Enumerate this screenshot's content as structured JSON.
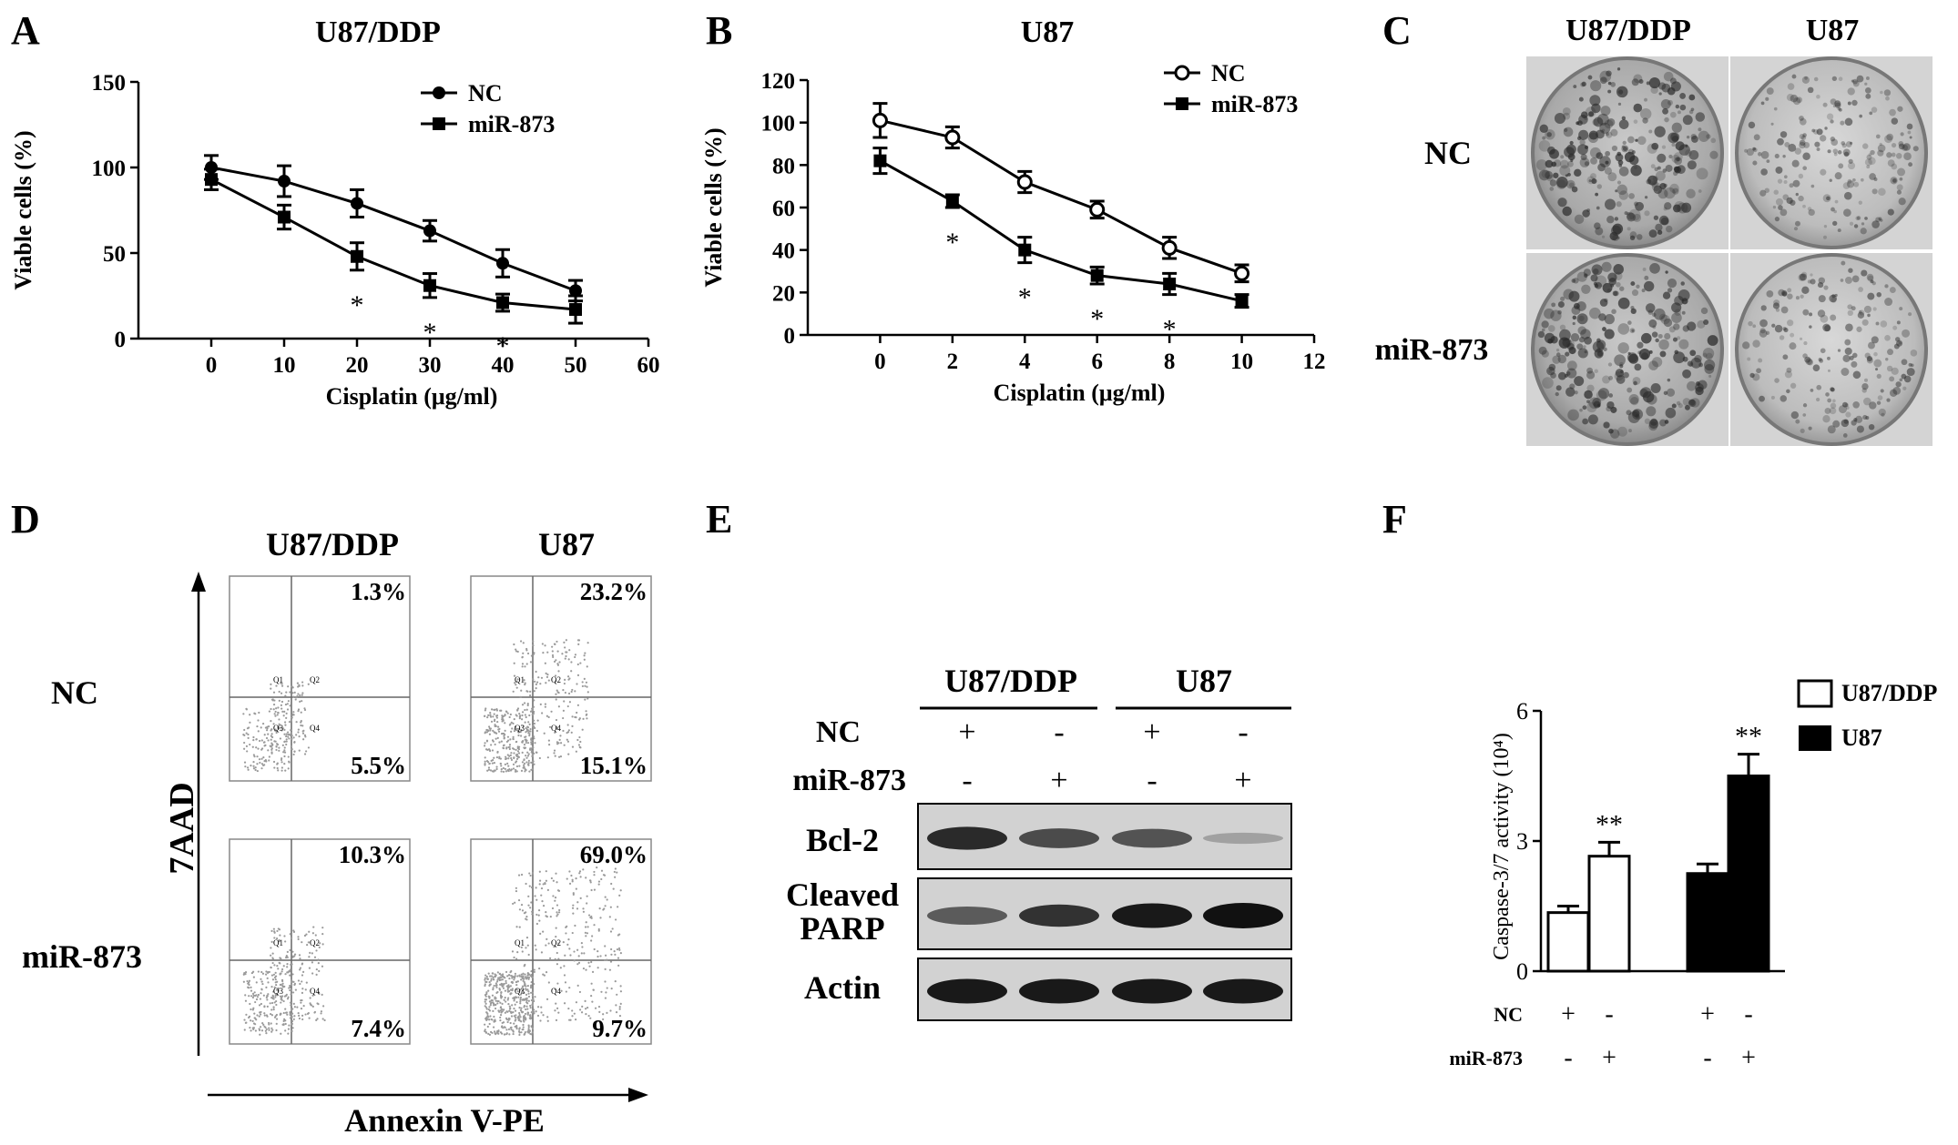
{
  "panels": {
    "A": {
      "letter": "A",
      "title": "U87/DDP"
    },
    "B": {
      "letter": "B",
      "title": "U87"
    },
    "C": {
      "letter": "C",
      "col_labels": [
        "U87/DDP",
        "U87"
      ],
      "row_labels": [
        "NC",
        "miR-873"
      ]
    },
    "D": {
      "letter": "D",
      "col_labels": [
        "U87/DDP",
        "U87"
      ],
      "row_labels": [
        "NC",
        "miR-873"
      ],
      "ylabel": "7AAD",
      "xlabel": "Annexin V-PE",
      "plots": [
        {
          "upper_right": "1.3%",
          "lower_right": "5.5%"
        },
        {
          "upper_right": "23.2%",
          "lower_right": "15.1%"
        },
        {
          "upper_right": "10.3%",
          "lower_right": "7.4%"
        },
        {
          "upper_right": "69.0%",
          "lower_right": "9.7%"
        }
      ],
      "quadrant_labels": [
        "Q1",
        "Q2",
        "Q3",
        "Q4"
      ]
    },
    "E": {
      "letter": "E",
      "groups": [
        "U87/DDP",
        "U87"
      ],
      "treatments": [
        {
          "name": "NC",
          "signs": [
            "+",
            "-",
            "+",
            "-"
          ]
        },
        {
          "name": "miR-873",
          "signs": [
            "-",
            "+",
            "-",
            "+"
          ]
        }
      ],
      "blots": [
        {
          "label": "Bcl-2",
          "intensity": [
            0.85,
            0.65,
            0.6,
            0.12
          ]
        },
        {
          "label": "Cleaved PARP",
          "intensity": [
            0.55,
            0.8,
            0.95,
            1.0
          ]
        },
        {
          "label": "Actin",
          "intensity": [
            0.95,
            0.95,
            0.95,
            0.95
          ]
        }
      ]
    },
    "F": {
      "letter": "F"
    }
  },
  "chart_data": [
    {
      "type": "line",
      "panel": "A",
      "title": "U87/DDP",
      "xlabel": "Cisplatin (μg/ml)",
      "ylabel": "Viable cells (%)",
      "xlim": [
        -10,
        60
      ],
      "ylim": [
        0,
        150
      ],
      "xticks": [
        0,
        10,
        20,
        30,
        40,
        50,
        60
      ],
      "yticks": [
        0,
        50,
        100,
        150
      ],
      "legend": "top-right",
      "series": [
        {
          "name": "NC",
          "marker": "filled-circle",
          "x": [
            0,
            10,
            20,
            30,
            40,
            50
          ],
          "y": [
            100,
            92,
            79,
            63,
            44,
            28
          ],
          "err": [
            7,
            9,
            8,
            6,
            8,
            6
          ]
        },
        {
          "name": "miR-873",
          "marker": "filled-square",
          "x": [
            0,
            10,
            20,
            30,
            40,
            50
          ],
          "y": [
            93,
            71,
            48,
            31,
            21,
            17
          ],
          "err": [
            6,
            7,
            8,
            7,
            5,
            8
          ]
        }
      ],
      "annotations": [
        {
          "x": 20,
          "text": "*"
        },
        {
          "x": 30,
          "text": "*"
        },
        {
          "x": 40,
          "text": "*"
        }
      ]
    },
    {
      "type": "line",
      "panel": "B",
      "title": "U87",
      "xlabel": "Cisplatin (μg/ml)",
      "ylabel": "Viable cells (%)",
      "xlim": [
        -2,
        12
      ],
      "ylim": [
        0,
        120
      ],
      "xticks": [
        0,
        2,
        4,
        6,
        8,
        10,
        12
      ],
      "yticks": [
        0,
        20,
        40,
        60,
        80,
        100,
        120
      ],
      "legend": "top-right",
      "series": [
        {
          "name": "NC",
          "marker": "open-circle",
          "x": [
            0,
            2,
            4,
            6,
            8,
            10
          ],
          "y": [
            101,
            93,
            72,
            59,
            41,
            29
          ],
          "err": [
            8,
            5,
            5,
            4,
            5,
            4
          ]
        },
        {
          "name": "miR-873",
          "marker": "filled-square",
          "x": [
            0,
            2,
            4,
            6,
            8,
            10
          ],
          "y": [
            82,
            63,
            40,
            28,
            24,
            16
          ],
          "err": [
            6,
            3,
            6,
            4,
            5,
            3
          ]
        }
      ],
      "annotations": [
        {
          "x": 2,
          "text": "*"
        },
        {
          "x": 4,
          "text": "*"
        },
        {
          "x": 6,
          "text": "*"
        },
        {
          "x": 8,
          "text": "*"
        }
      ]
    },
    {
      "type": "bar",
      "panel": "F",
      "ylabel": "Caspase-3/7 activity (10⁴)",
      "ylim": [
        0,
        6
      ],
      "yticks": [
        0,
        3,
        6
      ],
      "legend": "top-right",
      "groups": [
        {
          "name": "U87/DDP",
          "color": "#ffffff",
          "values": [
            1.35,
            2.65
          ],
          "err": [
            0.15,
            0.32
          ]
        },
        {
          "name": "U87",
          "color": "#000000",
          "values": [
            2.25,
            4.5
          ],
          "err": [
            0.22,
            0.5
          ]
        }
      ],
      "row_labels": [
        {
          "name": "NC",
          "signs": [
            "+",
            "-",
            "+",
            "-"
          ]
        },
        {
          "name": "miR-873",
          "signs": [
            "-",
            "+",
            "-",
            "+"
          ]
        }
      ],
      "annotations": [
        {
          "bar": 1,
          "text": "**"
        },
        {
          "bar": 3,
          "text": "**"
        }
      ]
    }
  ]
}
